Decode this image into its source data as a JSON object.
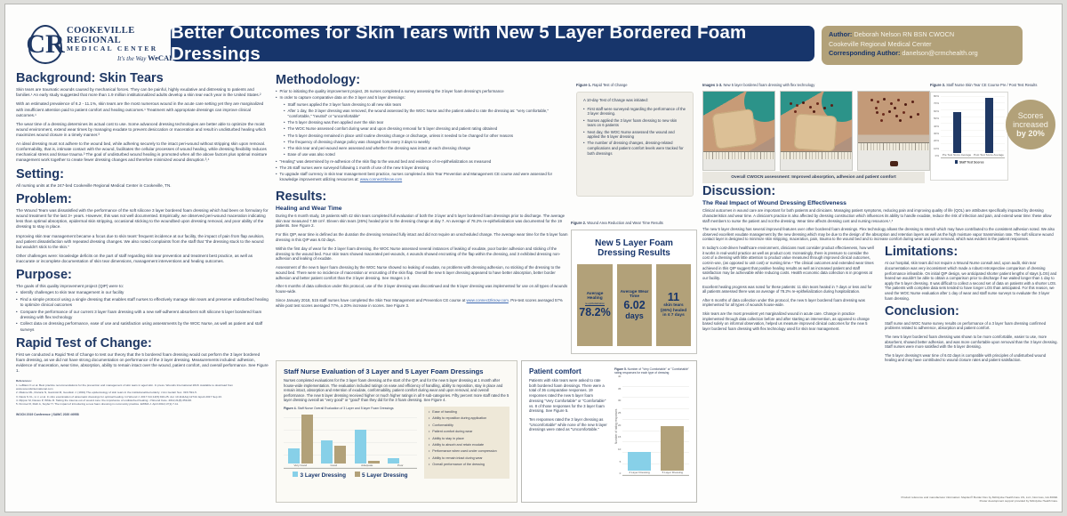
{
  "poster": {
    "logo": {
      "monogram": "CR",
      "line1": "COOKEVILLE REGIONAL",
      "line2": "MEDICAL CENTER",
      "tagline_prefix": "It's the Way",
      "tagline_brand": "WeCARE"
    },
    "title": "Better Outcomes for Skin Tears with New 5 Layer Bordered Foam Dressings",
    "author_box": {
      "author_label": "Author:",
      "author": "Deborah Nelson RN BSN CWOCN",
      "org": "Cookeville Regional Medical Center",
      "corresponding_label": "Corresponding Author:",
      "email": "danelson@crmchealth.org"
    }
  },
  "background": {
    "heading": "Background: Skin Tears",
    "paragraphs": [
      "Skin tears are traumatic wounds caused by mechanical forces.  They can be painful, highly exudative and distressing to patients and families.¹ An early study suggested that more than 1.9 million institutionalized adults develop a skin tear each year in the United States.²",
      "With an estimated prevalence of 6.2 - 11.1%, skin tears are the most numerous wound in the acute care setting yet they are marginalized with insufficient attention paid to patient comfort and healing outcomes.¹ Treatment with appropriate dressings can improve clinical outcomes.¹",
      "The wear time of a dressing determines its actual cost to use. Some advanced dressing technologies are better able to optimize the moist wound environment, extend wear times by managing exudate to prevent desiccation or maceration and result in undisturbed healing which maximizes wound closure in a timely manner.³",
      "An ideal dressing must not adhere to the wound bed, while adhering securely to the intact peri-wound without stripping skin upon removal.  Conformability, that is, intimate contact with the wound, facilitates the cellular processes of wound healing, while dressing flexibility reduces mechanical stress and tissue trauma.³  The goal of undisturbed wound healing is promoted when all the above factors plus optimal moisture management work together to create fewer dressing changes and therefore minimized wound disruption.³,⁴"
    ]
  },
  "setting": {
    "heading": "Setting:",
    "text": "All nursing units at the 247-bed Cookeville Regional Medical Center in Cookeville, TN."
  },
  "problem": {
    "heading": "Problem:",
    "paragraphs": [
      "The Wound Team was dissatisfied with the performance of the soft silicone 3 layer bordered foam dressing which had been on formulary for wound treatment for the last 3+ years. However, this was not well documented.  Empirically, we observed peri-wound maceration indicating less than optimal absorption, epidermal skin stripping, occasional sticking to the woundbed upon dressing removal, and poor ability of the dressing to stay in place.",
      "Improving skin tear management became a focus due to skin tears' frequent incidence at our facility, the impact of pain from flap avulsion, and patient dissatisfaction with repeated dressing changes.  We also noted complaints from the staff that \"the dressing stuck to the wound but wouldn't stick to the skin.\"",
      "Other challenges were: knowledge deficits on the part of staff regarding skin tear prevention and treatment best practice, as well as inaccurate or incomplete documentation of skin tear dimensions, management interventions and healing outcomes."
    ]
  },
  "purpose": {
    "heading": "Purpose:",
    "intro": "The goals of this quality improvement project (QIP) were to:",
    "bullets": [
      "Identify challenges to skin tear management in our facility",
      "Find a simple protocol using a single dressing that enables staff nurses to effectively manage skin tears and preserve undisturbed healing to optimize clinical outcomes",
      "Compare the performance of our current 3 layer foam dressing with a new self-adherent absorbent soft silicone 5 layer bordered foam dressing with flex technology",
      "Collect data on dressing performance, ease of use and satisfaction using assessments by the WOC Nurse, as well as patient and staff surveys"
    ]
  },
  "rapid_test": {
    "heading": "Rapid Test of Change:",
    "paragraph": "First we conducted a Rapid Test of Change to test our theory that the 5 bordered foam dressing would out perform the 3 layer bordered foam dressing, as we did not have strong documentation on performance of the 3 layer dressing. Measurements included: adhesion, evidence of maceration, wear time, absorption, ability to remain intact over the wound, patient comfort, and overall performance.  See Figure 1."
  },
  "references": {
    "heading": "References:",
    "items": [
      "1. LeBlanc K et al. Best practice recommendations for the prevention and management of skin tears in aged skin. In press. Wounds International 2018. Available to download from www.woundsinternational.com",
      "2. Malone ML, Rozario N, Gavinski M, Goodwin J. (1991) The epidemiology of skin tears in the institutionalized elderly. J Am Geriatr Soc. 39:6 591-5.",
      "3. Davis S CL, Li J, et al. In vitro examination of atraumatic dressings for optimal healing. Int Wound J. 2017 Oct;14(5):916-25. doi: 10.1111/iwj.12744. Epub 2017 Sep 23.",
      "4. Rippon M, Davies P, White R. Taking the trauma out of wound care: the importance of undisturbed healing. J Wound Care. 2012;21(8):359-68.",
      "5. Kimmel R, Roth A, Soyfer H. The impact of introducing a new foam dressing in community practice. EWMA J. April 2014;17(1):7-11."
    ]
  },
  "conference_note": "WOCN 2019 Conference | SAWC 2020 #6958",
  "methodology": {
    "heading": "Methodology:",
    "items": [
      {
        "text": "Prior to initiating the quality improvement project, 26 nurses completed a survey assessing the 3 layer foam dressing's performance"
      },
      {
        "text": "In order to capture comparative data on the 3 layer and 5 layer dressings:",
        "subs": [
          "Staff nurses applied the 3 layer foam dressing to all new skin tears",
          "After 1 day, the 3 layer dressing was removed, the wound assessed by the WOC Nurse and the patient asked to rate the dressing as: \"very comfortable,\" \"comfortable,\" \"neutral\" or \"uncomfortable\"",
          "The 5 layer dressing was then applied over the skin tear",
          "The WOC Nurse assessed comfort during wear and upon dressing removal for 5 layer dressing and patient rating obtained",
          "The 5 layer dressing remained in place until routine dressing change or discharge, unless it needed to be changed for other reasons",
          "The frequency of dressing change policy was changed from every 3 days to weekly",
          "The skin tear and peri-wound were assessed and whether the dressing was intact at each dressing change",
          "Ease of use was also noted"
        ]
      },
      {
        "text": "\"Healing\" was determined by re-adhesion of the skin flap to the wound bed and evidence of re-epithelialization as measured"
      },
      {
        "text": "The 26 staff nurses were surveyed following 1 month of use of the new 5 layer dressing"
      },
      {
        "text": "To upgrade staff currency in skin tear management best practice, nurses completed a Skin Tear Prevention and Management CE course and were assessed for knowledge improvement utilizing resources at: "
      }
    ],
    "link": "www.connect2know.com"
  },
  "results": {
    "heading": "Results:",
    "subhead": "Healing and Wear Time",
    "paragraphs": [
      "During the 6 month study, 19 patients with 42 skin tears completed full evaluation of both the 3 layer and 5 layer bordered foam dressings prior to discharge.  The average skin tear measured 7.59 cm².   Eleven skin tears (26%) healed prior to the dressing change at day 7.  An average of 78.2% re-epithelialization was documented for the 19 patients.  See Figure 2.",
      "For this QIP, wear time is defined as the duration the dressing remained fully intact and did not require an unscheduled change.  The average wear time for the 5 layer foam dressing in this QIP was 6.02 days.",
      "Within the first day of wear for the 3 layer foam dressing, the WOC Nurse assessed several instances of leaking of exudate, poor border adhesion and sticking of the dressing to the wound bed.  Four skin tears showed macerated peri-wounds, 4 wounds showed encrusting of the flap within the dressing, and 3 exhibited dressing non-adhesion and leaking of exudate.",
      "Assessment of the new 5 layer foam dressing by the WOC Nurse showed no leaking of exudate, no problems with dressing adhesion, no sticking of the dressing to the wound bed. There were no incidence of maceration or encrusting of the skin flap. Overall the new 5 layer dressing appeared to have better absorption, better border adhesion and better patient comfort than the 3 layer dressing.  See Images 1-3.",
      "After 6 months of data collection under this protocol, use of the 3 layer dressing was discontinued and the 5 layer dressing was implemented for use on all types of wounds house-wide."
    ],
    "p5_pre": "Since January 2018, 515 staff nurses have completed the Skin Tear Management and Prevention CE course at ",
    "link": "www.connect2know.com",
    "p5_post": ".  Pre-test scores averaged 57% while post test scores averaged 77%, a 20% increase in scores.  See Figure 3."
  },
  "staff_eval": {
    "title": "Staff Nurse Evaluation of 3 Layer and 5 Layer Foam Dressings",
    "paragraph": "Nurses completed evaluations for the 3 layer foam dressing at the start of the QIP, and for the new 5 layer dressing at 1 month after house-wide implementation. The evaluation included ratings on ease and efficiency of handling, ability to reposition, stay in place and remain intact, absorption and retention of exudate, conformability, patient comfort during wear and upon removal, and overall performance.  The new 5 layer dressing received higher or much higher ratings in all 9 sub-categories.  Fifty percent more staff rated the 5 layer dressing overall as \"very good\" or \"good\" than they did for the 3 foam dressing.  See Figure 4.",
    "figure4_caption_bold": "Figure 4.",
    "figure4_caption": "Staff Nurse Overall Evaluation of 3 Layer and 5 layer Foam Dressings",
    "criteria": [
      "Ease of handling",
      "Ability to reposition during application",
      "Conformability",
      "Patient comfort during wear",
      "Ability to stay in place",
      "Ability to absorb and retain exudate",
      "Performance when used under compression",
      "Ability to remain intact during wear",
      "Overall performance of the dressing"
    ]
  },
  "figure1": {
    "caption_bold": "Figure 1.",
    "caption": "Rapid Test of Change",
    "intro": "A 10-day Test of Change was initiated:",
    "bullets": [
      "First staff were surveyed regarding the performance of the 3 layer dressing.",
      "Nurses applied the 3 layer foam dressing to new skin tears on 6 patients",
      "Next day, the WOC Nurse assessed the wound and applied the 5 layer dressing",
      "The number of dressing changes, dressing-related complications and patient comfort levels were tracked for both dressings"
    ]
  },
  "figure2": {
    "caption_bold": "Figure 2.",
    "caption": "Wound Area Reduction and Wear Time Results",
    "box_title": "New 5 Layer Foam Dressing Results",
    "cards": [
      {
        "label": "Average Healing",
        "sublabel": "re-epithelialization",
        "value": "78.2%"
      },
      {
        "label": "Average Wear Time",
        "value": "6.02",
        "unit": "days"
      },
      {
        "value": "11",
        "label": "skin tears (26%) healed in ≤ 7 days"
      }
    ]
  },
  "patient_comfort": {
    "heading": "Patient comfort",
    "paragraphs": [
      "Patients with skin tears were asked to rate both bordered foam dressings. There were a total of 36 comparative responses. 19 responses rated the new 5 layer foam dressing \"Very Comfortable\" or \"Comfortable\" vs. 8 of those responses for the 3 layer foam dressing.  See Figure 5.",
      "Ten responses rated the 3 layer dressing as \"Uncomfortable\" while none of the new 5 layer dressings were rated as \"Uncomfortable.\""
    ],
    "figure5_caption_bold": "Figure 5.",
    "figure5_caption": "Number of \"Very Comfortable\" or \"Comfortable\" rating responses for each type of dressing",
    "ylabel": "Number of rating responses"
  },
  "images_section": {
    "caption_bold": "Images 1-3.",
    "caption": "New 5 layer bordered foam dressing with flex technology",
    "assessment": "Overall CWOCN assessment: Improved absorption, adhesion and patient comfort"
  },
  "figure3": {
    "caption_bold": "Figure 3.",
    "caption": "Staff Nurse Skin Tear CE Course Pre / Post Test Results",
    "legend": "Staff Test Scores"
  },
  "scores_badge": {
    "line1": "Scores",
    "line2": "increased",
    "line3": "by 20%"
  },
  "discussion": {
    "heading": "Discussion:",
    "subhead": "The Real Impact of Wound Dressing Effectiveness",
    "paragraphs": [
      "Clinical outcomes in wound care are important for both patients and clinicians.  Managing patient symptoms, reducing pain and improving quality of life (QOL) are attributes specifically impacted by dressing characteristics and wear time.  A clinician's practice is also affected by dressing construction which influences its ability to handle exudate, reduce the risk of infection and pain, and extend wear time: these allow staff members to nurse the patient and not the dressing.  Wear time affects dressing cost and nursing resources.¹,³",
      "The new 5 layer dressing has several improved features over other bordered foam dressings. Flex technology allows the dressing to stretch which may have contributed to the consistent adhesion noted.  We also observed excellent exudate management by the new dressing which may be due to the design of the absorption and retention layers as well as the high moisture vapor transmission rate.  The soft silicone wound contact layer is designed to minimize skin stripping, maceration, pain, trauma to the wound bed and to increase comfort during wear and upon removal, which was evident in the patient responses.",
      "In today's cost-driven healthcare environment, clinicians must consider product effectiveness, how well it works in real-world practice as well as product cost.  Increasingly, there is pressure to consider the cost of a dressing with little attention to product value measured through improved clinical outcomes, cost-in-use, (as opposed to unit cost) or nursing time.⁴ The clinical outcomes and extended wear times achieved in this QIP suggest that positive healing results as well as increased patient and staff satisfaction may be achievable while reducing costs.  Health economic data collection is in progress at our facility."
    ]
  },
  "limitations": {
    "heading": "Limitations:",
    "paragraph": "At our hospital, skin tears did not require a Wound Nurse consult and, upon audit, skin tear documentation was very inconsistent which made a robust retrospective comparison of dressing performance infeasible.  On initial QIP design, we anticipated shorter patient lengths of stays (LOS) and feared we wouldn't be able to obtain a comparison prior to discharge if we waited longer than 1 day to apply the 5 layer dressing.  It was difficult to collect a second set of data on patients with a shorter LOS. The patients with complete data sets tended to have longer LOS than anticipated. For this reason, we used the WOC Nurse evaluation after 1 day of wear and staff nurse surveys to evaluate the 3 layer foam dressing."
  },
  "conclusion": {
    "heading": "Conclusion:",
    "paragraphs": [
      "Staff nurse and WOC Nurse survey results on performance of a 3 layer foam dressing confirmed problems related to adherence, absorption and patient comfort.",
      "The new 5 layer bordered foam dressing was shown to be more comfortable, easier to use, more absorbent, showed better adhesion, and was more comfortable upon removal than the 3 layer dressing. Staff nurses were more satisfied with the 5 layer dressing.",
      "The 5 layer dressing's wear time of 6.02 days is compatible with principles of undisturbed wound healing and may have contributed to wound closure rates and patient satisfaction.",
      "Excellent healing progress was noted for these patients: 11 skin tears healed in 7 days or less and for all patients assessed there was an average of 78.2% re-epithelialization during hospitalization.",
      "After 6 months of data collection under this protocol, the new 5 layer bordered foam dressing was implemented for all types of wounds house-wide.",
      "Skin tears are the most prevalent yet marginalized wound in acute care.  Change in practice implemented through data collection before and after starting an intervention, as opposed to change based solely on informal observation, helped us measure improved clinical outcomes for the new 5 layer bordered foam dressing with flex technology used for skin tear management."
    ]
  },
  "footer": {
    "product_note": "Product reference and manufacturer information: Mepilex® Border Flex by Mölnlycke Health Care US, LLC, Norcross, GA 30092.",
    "support_note": "Poster development support provided by Mölnlycke Health Care."
  },
  "colors": {
    "navy": "#17356b",
    "tan": "#b2a179",
    "light_blue": "#87d0e8",
    "bar_navy": "#1f3864"
  },
  "chart_data": [
    {
      "id": "fig4",
      "type": "bar",
      "title": "Figure 4. Staff Nurse Overall Evaluation of 3 Layer and 5 layer Foam Dressings",
      "categories": [
        "Very Good",
        "Good",
        "Adequate",
        "Poor"
      ],
      "series": [
        {
          "name": "3 Layer Dressing",
          "color": "#87d0e8",
          "values": [
            6,
            9,
            13,
            2
          ]
        },
        {
          "name": "5 Layer Dressing",
          "color": "#b2a179",
          "values": [
            19,
            7,
            1,
            0
          ]
        }
      ],
      "ylim": [
        0,
        20
      ],
      "grid": true,
      "legend_position": "bottom"
    },
    {
      "id": "fig5",
      "type": "bar",
      "title": "Figure 5. Number of \"Very Comfortable\" or \"Comfortable\" rating responses for each type of dressing",
      "ylabel": "Number of rating responses",
      "categories": [
        "3 Layer Dressing",
        "5 Layer Dressing"
      ],
      "series": [
        {
          "name": "rating responses",
          "colors": [
            "#87d0e8",
            "#b2a179"
          ],
          "values": [
            8,
            19
          ]
        }
      ],
      "ylim": [
        0,
        40
      ],
      "yticks": [
        "0",
        "5",
        "10",
        "15",
        "20",
        "25",
        "30",
        "35",
        "40"
      ],
      "grid": true
    },
    {
      "id": "fig3",
      "type": "bar",
      "title": "Figure 3. Staff Nurse Skin Tear CE Course Pre / Post Test Results",
      "categories": [
        "Pre Test Score Average",
        "Post Test Score Average"
      ],
      "series": [
        {
          "name": "Staff Test Scores",
          "color": "#1f3864",
          "values": [
            57,
            77
          ]
        }
      ],
      "ylim": [
        0,
        80
      ],
      "yticks": [
        "0%",
        "10%",
        "20%",
        "30%",
        "40%",
        "50%",
        "60%",
        "70%",
        "80%"
      ],
      "grid": true,
      "legend_position": "bottom"
    }
  ]
}
